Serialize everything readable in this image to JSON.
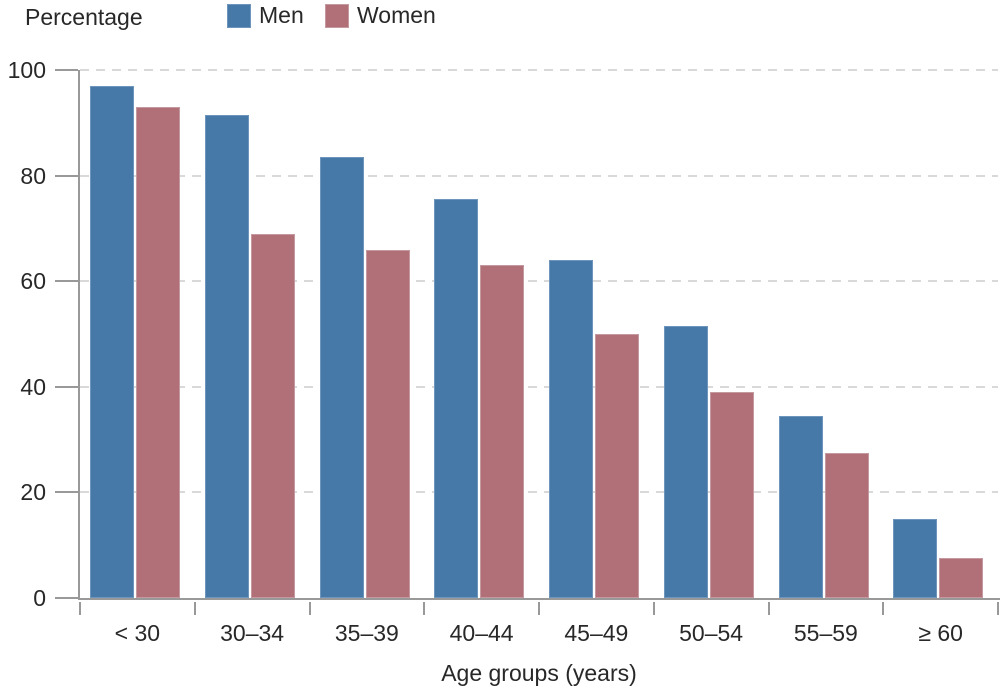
{
  "chart_data": {
    "type": "bar",
    "title": "",
    "ylabel": "Percentage",
    "xlabel": "Age groups (years)",
    "categories": [
      "< 30",
      "30–34",
      "35–39",
      "40–44",
      "45–49",
      "50–54",
      "55–59",
      "≥ 60"
    ],
    "series": [
      {
        "name": "Men",
        "color": "#4678a8",
        "edge_color": "#6e96bc",
        "values": [
          97,
          91.5,
          83.5,
          75.5,
          64,
          51.5,
          34.5,
          15
        ]
      },
      {
        "name": "Women",
        "color": "#b17078",
        "edge_color": "#c49aa0",
        "values": [
          93,
          69,
          66,
          63,
          50,
          39,
          27.5,
          7.5
        ]
      }
    ],
    "ylim": [
      0,
      100
    ],
    "yticks": [
      0,
      20,
      40,
      60,
      80,
      100
    ],
    "grid": "horizontal dashed at y ticks above 0",
    "grid_color": "#d9d9d9",
    "axis_color": "#999999",
    "text_color": "#282828",
    "legend_position": "top"
  }
}
